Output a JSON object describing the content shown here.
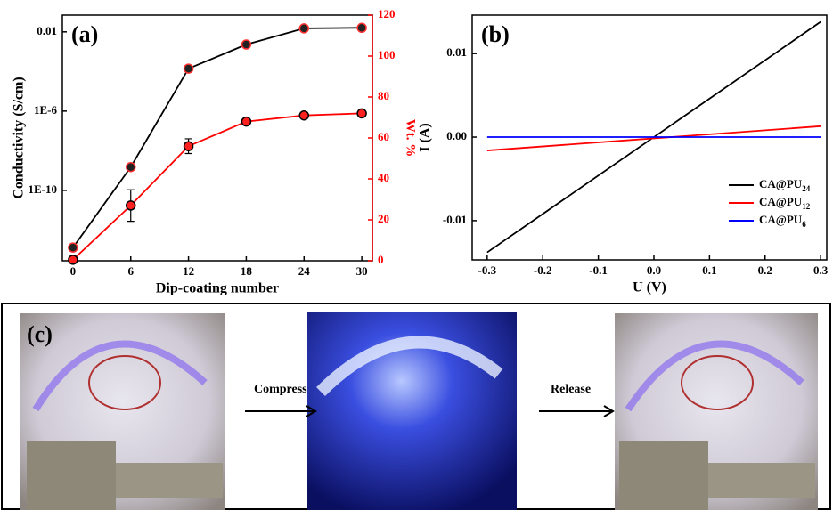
{
  "chart_data": [
    {
      "type": "line",
      "label": "(a)",
      "xlabel": "Dip-coating number",
      "ylabel": "Conductivity (S/cm)",
      "y2label": "Wt. %",
      "x": [
        0,
        6,
        12,
        18,
        24,
        30
      ],
      "xlim": [
        -1.1,
        31.1
      ],
      "xticks": [
        0,
        6,
        12,
        18,
        24,
        30
      ],
      "ylog": true,
      "ylim": [
        2.8e-14,
        0.07
      ],
      "yticks": [
        0.01,
        {
          "value": 1e-06,
          "label": "1E-6"
        },
        {
          "value": 1e-10,
          "label": "1E-10"
        }
      ],
      "y2lim": [
        0,
        120
      ],
      "y2ticks": [
        0,
        20,
        40,
        60,
        80,
        100,
        120
      ],
      "y2color": "#ff0000",
      "markers": true,
      "series": [
        {
          "color": "#000000",
          "values": [
            1.3e-13,
            1.5e-09,
            0.00014,
            0.0023,
            0.015,
            0.016
          ]
        },
        {
          "color": "#ff0000",
          "axis": "y2",
          "values": [
            0.5,
            27,
            56,
            68,
            71,
            72
          ],
          "errors": [
            0.5,
            7.7,
            3.6,
            1.5,
            1,
            1
          ]
        }
      ]
    },
    {
      "type": "line",
      "label": "(b)",
      "xlabel": "U (V)",
      "ylabel": "I (A)",
      "x": [
        -0.3,
        0.3
      ],
      "xlim": [
        -0.327,
        0.311
      ],
      "xticks": [
        -0.3,
        -0.2,
        -0.1,
        {
          "value": 0,
          "label": "0.0"
        },
        0.1,
        0.2,
        0.3
      ],
      "ylim": [
        -0.0147,
        0.0146
      ],
      "yticks": [
        -0.01,
        {
          "value": 0,
          "label": "0.00"
        },
        0.01
      ],
      "legend": "lower right",
      "series": [
        {
          "name": "CA@PU",
          "name_sub": "24",
          "color": "#000000",
          "values": [
            -0.0138,
            0.0138
          ]
        },
        {
          "name": "CA@PU",
          "name_sub": "12",
          "color": "#ff0000",
          "values": [
            -0.0016,
            0.0013
          ]
        },
        {
          "name": "CA@PU",
          "name_sub": "6",
          "color": "#0000ff",
          "values": [
            0,
            0
          ]
        }
      ]
    }
  ],
  "panel_c": {
    "label": "(c)",
    "arrows": [
      "Compress",
      "Release"
    ]
  }
}
